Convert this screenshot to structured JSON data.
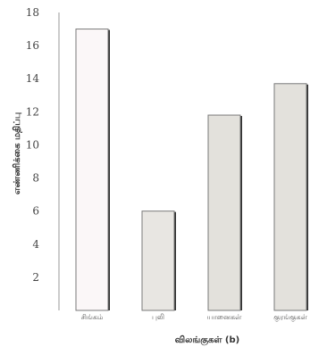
{
  "chart_data": {
    "type": "bar",
    "title": "",
    "xlabel": "விலங்குகள் (b)",
    "ylabel": "எண்ணிக்கை மதிப்பு",
    "categories": [
      "சிங்கம்",
      "புலி",
      "யானைகள்",
      "குரங்குகள்"
    ],
    "values": [
      17,
      6,
      11.8,
      13.7
    ],
    "ylim": [
      0,
      18
    ],
    "yticks": [
      2,
      4,
      6,
      8,
      10,
      12,
      14,
      16,
      18
    ],
    "grid": false,
    "bar_colors": [
      "#fbf7f8",
      "#e8e6e2",
      "#e3e1dc",
      "#e3e1dc"
    ],
    "bar_edge_color": "#7a7a7a",
    "bar_shadow_color": "#2e2e2e"
  }
}
